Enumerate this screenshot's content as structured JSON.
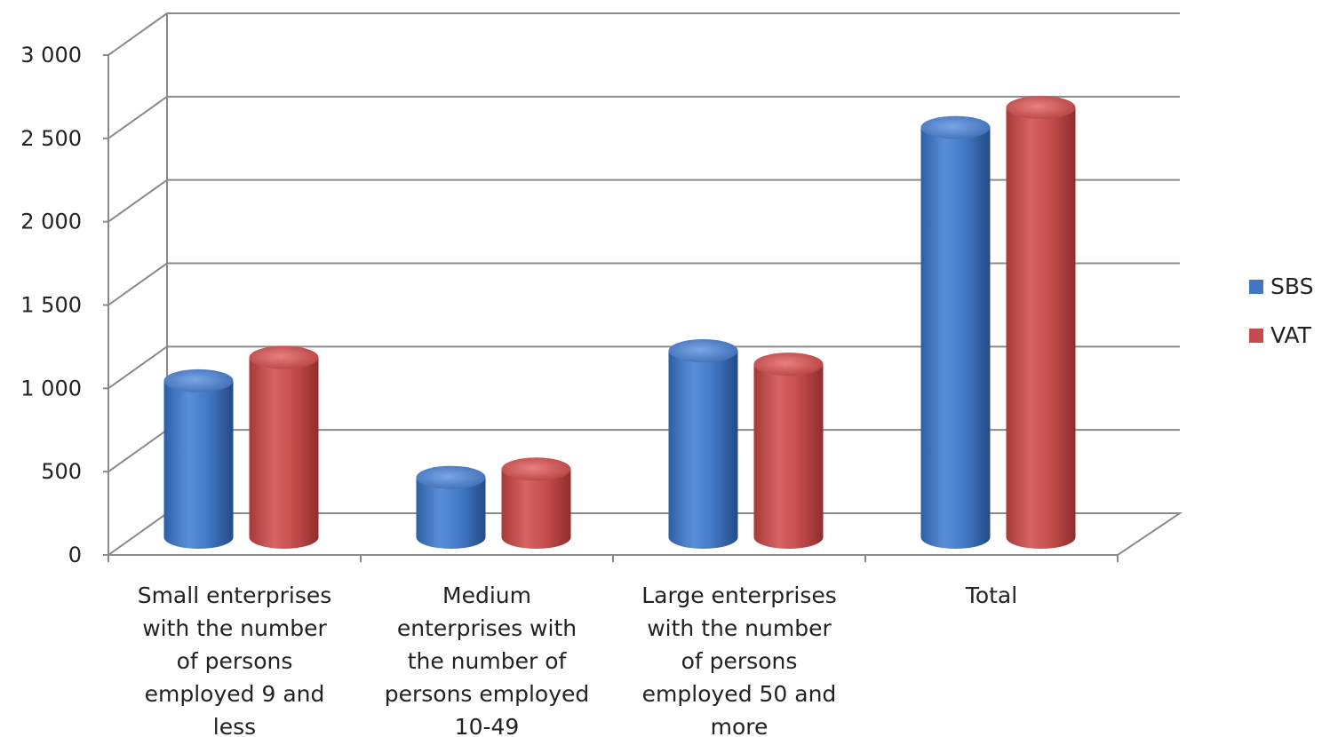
{
  "chart_data": {
    "type": "bar",
    "style": "3d-cylinder",
    "categories": [
      "Small enterprises with the number of persons employed 9 and less",
      "Medium enterprises with the number of persons employed 10-49",
      "Large enterprises with the number of persons employed 50 and more",
      "Total"
    ],
    "category_lines": [
      [
        "Small enterprises",
        "with the number",
        "of persons",
        "employed 9 and",
        "less"
      ],
      [
        "Medium",
        "enterprises with",
        "the number of",
        "persons employed",
        "10-49"
      ],
      [
        "Large enterprises",
        "with the number",
        "of persons",
        "employed 50 and",
        "more"
      ],
      [
        "Total"
      ]
    ],
    "series": [
      {
        "name": "SBS",
        "color": "#3f77c5",
        "values": [
          960,
          380,
          1140,
          2480
        ]
      },
      {
        "name": "VAT",
        "color": "#c44c4c",
        "values": [
          1100,
          430,
          1060,
          2600
        ]
      }
    ],
    "ylim": [
      0,
      3000
    ],
    "yticks": [
      0,
      500,
      1000,
      1500,
      2000,
      2500,
      3000
    ],
    "ytick_labels": [
      "0",
      "500",
      "1 000",
      "1 500",
      "2 000",
      "2 500",
      "3 000"
    ],
    "grid": true,
    "legend": "right",
    "title": "",
    "xlabel": "",
    "ylabel": ""
  }
}
